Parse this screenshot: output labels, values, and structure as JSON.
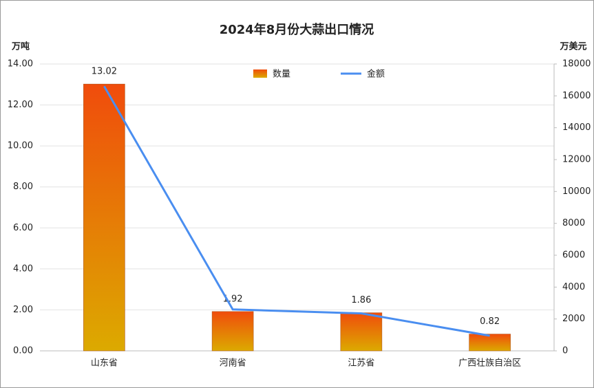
{
  "chart_data": {
    "type": "bar-line",
    "title": "2024年8月份大蒜出口情况",
    "y_label": "万吨",
    "y2_label": "万美元",
    "categories": [
      "山东省",
      "河南省",
      "江苏省",
      "广西壮族自治区"
    ],
    "series": [
      {
        "name": "数量",
        "type": "bar",
        "color": [
          "#f04c0c",
          "#dcaa00"
        ],
        "values": [
          13.02,
          1.92,
          1.86,
          0.82
        ]
      },
      {
        "name": "金额",
        "type": "line",
        "axis": "y2",
        "color": "#4a8ef0",
        "values": [
          16600,
          2600,
          2350,
          950
        ]
      }
    ],
    "ylim": [
      0,
      14
    ],
    "yticks": [
      {
        "value": 0,
        "label": "0.00"
      },
      {
        "value": 2,
        "label": "2.00"
      },
      {
        "value": 4,
        "label": "4.00"
      },
      {
        "value": 6,
        "label": "6.00"
      },
      {
        "value": 8,
        "label": "8.00"
      },
      {
        "value": 10,
        "label": "10.00"
      },
      {
        "value": 12,
        "label": "12.00"
      },
      {
        "value": 14,
        "label": "14.00"
      }
    ],
    "y2lim": [
      0,
      18000
    ],
    "y2ticks": [
      0,
      2000,
      4000,
      6000,
      8000,
      10000,
      12000,
      14000,
      16000,
      18000
    ],
    "grid": true
  }
}
